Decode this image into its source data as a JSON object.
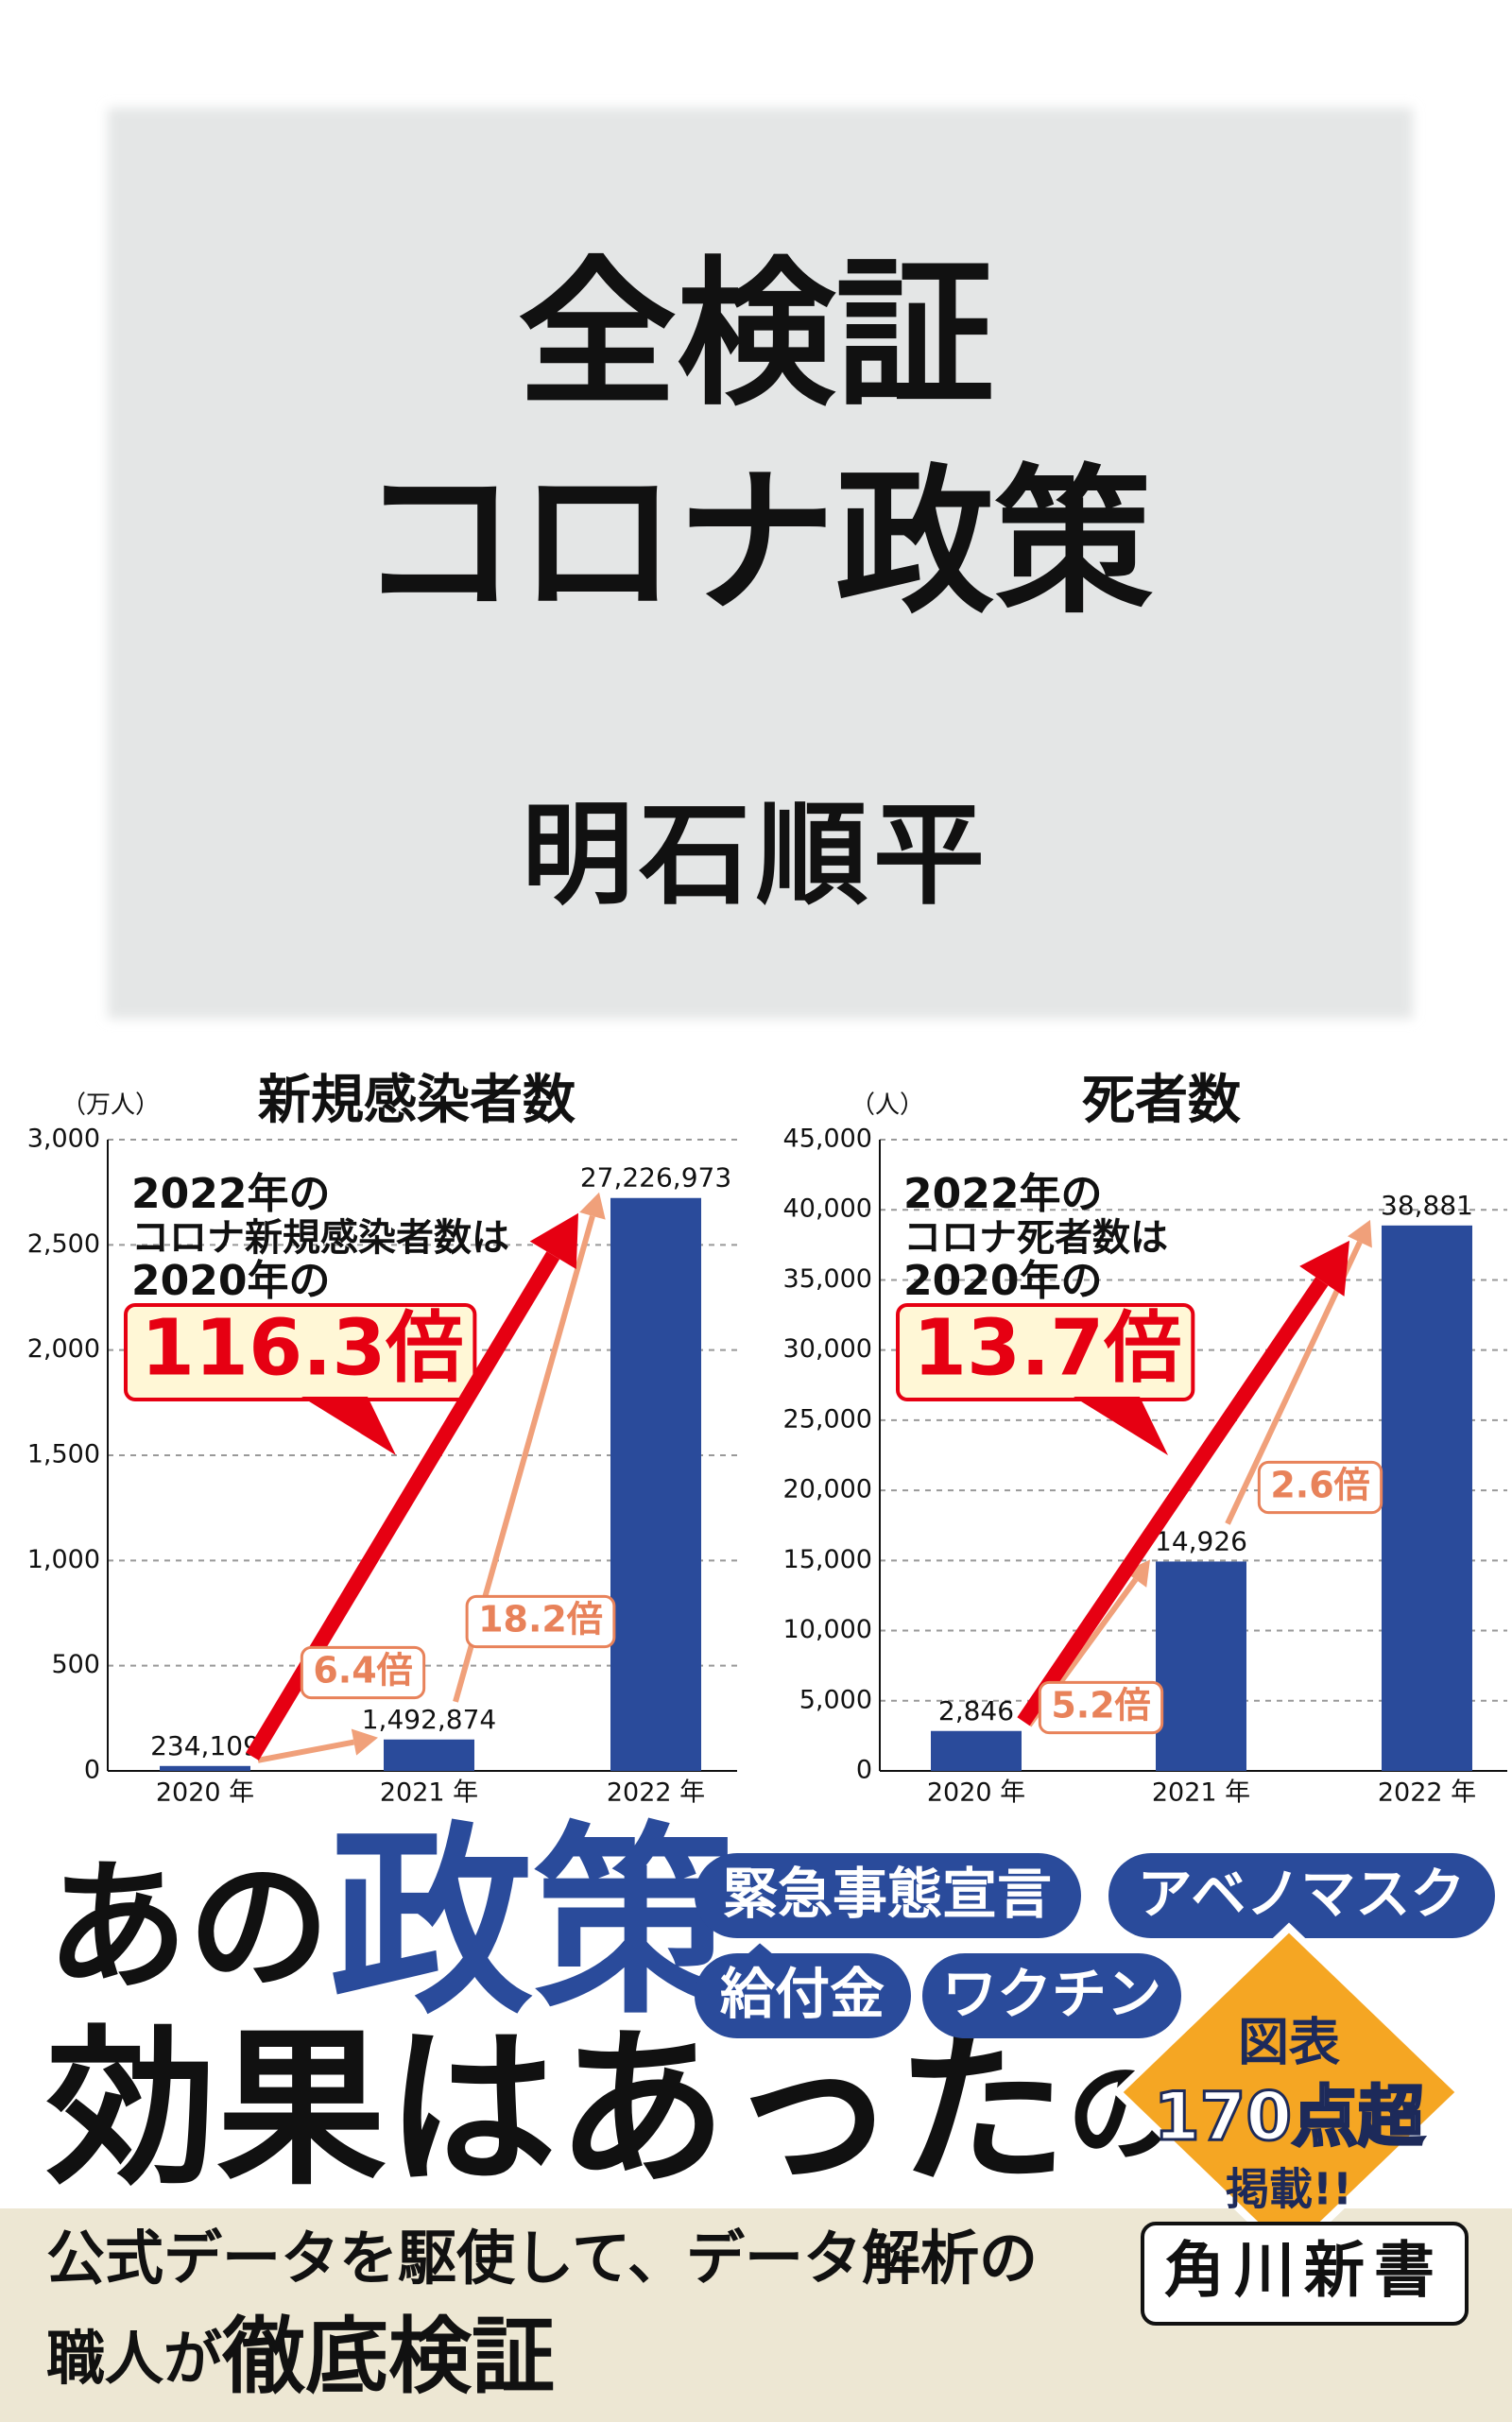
{
  "cover": {
    "title_lines": [
      "全検証",
      "コロナ政策"
    ],
    "author": "明石順平"
  },
  "chart_data": [
    {
      "type": "bar",
      "title": "新規感染者数",
      "ylabel": "（万人）",
      "categories": [
        "2020 年",
        "2021 年",
        "2022 年"
      ],
      "values": [
        23.4109,
        149.2874,
        2722.6973
      ],
      "value_labels": [
        "234,109",
        "1,492,874",
        "27,226,973"
      ],
      "color": "#2a4b9b",
      "ylim": [
        0,
        3000
      ],
      "yticks": [
        0,
        500,
        {
          "value": 1000,
          "label": "1,000"
        },
        {
          "value": 1500,
          "label": "1,500"
        },
        {
          "value": 2000,
          "label": "2,000"
        },
        {
          "value": 2500,
          "label": "2,500"
        },
        {
          "value": 3000,
          "label": "3,000"
        }
      ],
      "grid": true,
      "annotation": [
        "2022年の",
        "コロナ新規感染者数は",
        "2020年の"
      ],
      "highlight": "116.3倍",
      "ratios": [
        "6.4倍",
        "18.2倍"
      ]
    },
    {
      "type": "bar",
      "title": "死者数",
      "ylabel": "（人）",
      "categories": [
        "2020 年",
        "2021 年",
        "2022 年"
      ],
      "values": [
        2846,
        14926,
        38881
      ],
      "value_labels": [
        "2,846",
        "14,926",
        "38,881"
      ],
      "color": "#2a4b9b",
      "ylim": [
        0,
        45000
      ],
      "yticks": [
        0,
        {
          "value": 5000,
          "label": "5,000"
        },
        {
          "value": 10000,
          "label": "10,000"
        },
        {
          "value": 15000,
          "label": "15,000"
        },
        {
          "value": 20000,
          "label": "20,000"
        },
        {
          "value": 25000,
          "label": "25,000"
        },
        {
          "value": 30000,
          "label": "30,000"
        },
        {
          "value": 35000,
          "label": "35,000"
        },
        {
          "value": 40000,
          "label": "40,000"
        },
        {
          "value": 45000,
          "label": "45,000"
        }
      ],
      "grid": true,
      "annotation": [
        "2022年の",
        "コロナ死者数は",
        "2020年の"
      ],
      "highlight": "13.7倍",
      "ratios": [
        "5.2倍",
        "2.6倍"
      ]
    }
  ],
  "headline": {
    "line1": [
      "あの",
      "政策、"
    ],
    "line2": [
      "効果はあった",
      "のか？"
    ]
  },
  "tags": [
    "緊急事態宣言",
    "アベノマスク",
    "給付金",
    "ワクチン"
  ],
  "badge": [
    "図表",
    "170点超",
    "掲載!!"
  ],
  "tagline": {
    "line1": "公式データを駆使して、データ解析の",
    "line2": [
      "職人が",
      "徹底検証"
    ]
  },
  "publisher": "角川新書"
}
